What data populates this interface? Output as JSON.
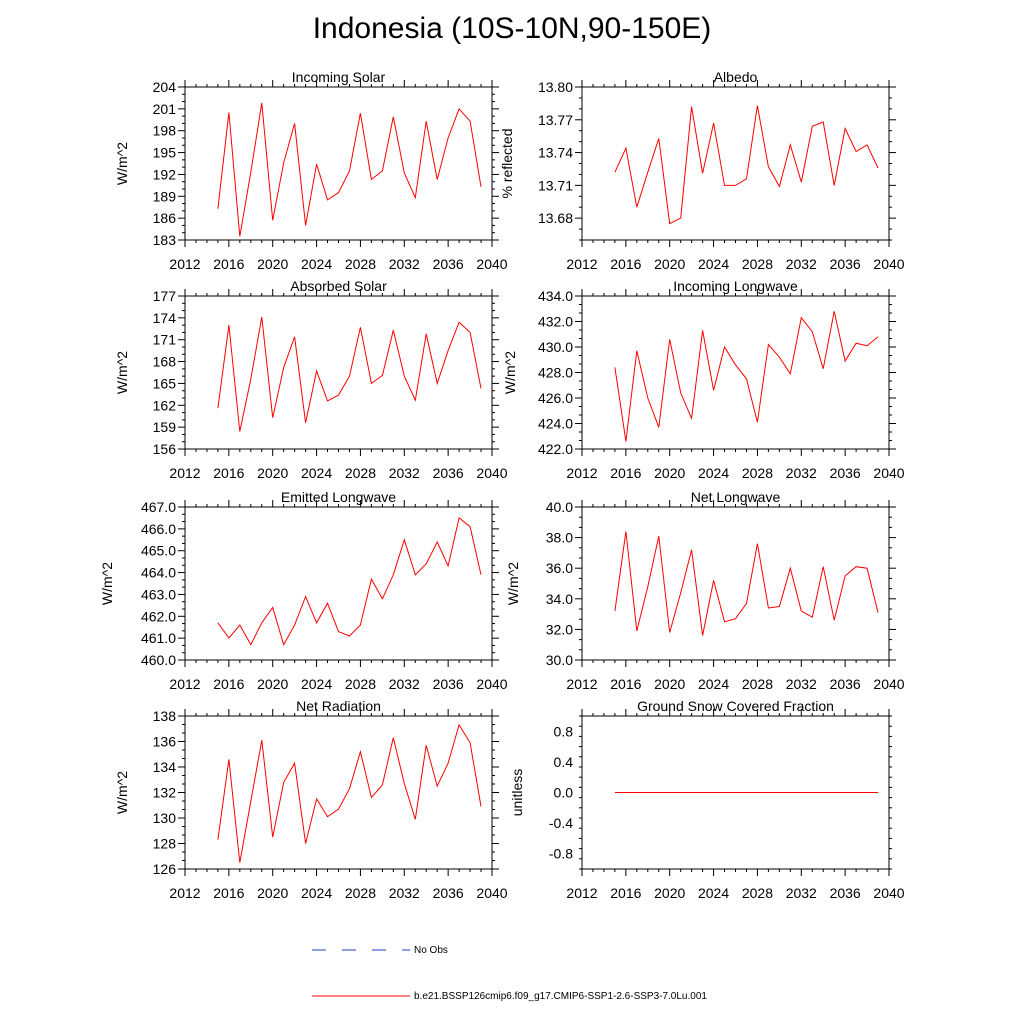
{
  "title": "Indonesia (10S-10N,90-150E)",
  "colors": {
    "model": "#ff0000",
    "obs": "#1f3fbf",
    "axis": "#000000"
  },
  "legend": [
    {
      "label": "No Obs",
      "style": "dashed",
      "color": "#1f3fbf"
    },
    {
      "label": "b.e21.BSSP126cmip6.f09_g17.CMIP6-SSP1-2.6-SSP3-7.0Lu.001",
      "style": "solid",
      "color": "#ff0000"
    }
  ],
  "chart_data": [
    {
      "type": "line",
      "title": "Incoming Solar",
      "ylabel": "W/m^2",
      "xlim": [
        2012,
        2040
      ],
      "xticks": [
        2012,
        2016,
        2020,
        2024,
        2028,
        2032,
        2036,
        2040
      ],
      "ylim": [
        183,
        204
      ],
      "yticks": [
        183,
        186,
        189,
        192,
        195,
        198,
        201,
        204
      ],
      "yticklabels": [
        "183",
        "186",
        "189",
        "192",
        "195",
        "198",
        "201",
        "204"
      ],
      "x": [
        2015,
        2016,
        2017,
        2018,
        2019,
        2020,
        2021,
        2022,
        2023,
        2024,
        2025,
        2026,
        2027,
        2028,
        2029,
        2030,
        2031,
        2032,
        2033,
        2034,
        2035,
        2036,
        2037,
        2038,
        2039
      ],
      "series": [
        {
          "values": [
            187.3,
            200.5,
            183.5,
            192.3,
            201.8,
            185.7,
            193.6,
            199.0,
            185.0,
            193.4,
            188.5,
            189.5,
            192.5,
            200.4,
            191.3,
            192.5,
            199.9,
            192.2,
            188.8,
            199.3,
            191.3,
            197.0,
            201.0,
            199.3,
            190.3
          ]
        }
      ]
    },
    {
      "type": "line",
      "title": "Albedo",
      "ylabel": "% reflected",
      "xlim": [
        2012,
        2040
      ],
      "xticks": [
        2012,
        2016,
        2020,
        2024,
        2028,
        2032,
        2036,
        2040
      ],
      "ylim": [
        13.66,
        13.8
      ],
      "yticks": [
        13.68,
        13.71,
        13.74,
        13.77,
        13.8
      ],
      "yticklabels": [
        "13.68",
        "13.71",
        "13.74",
        "13.77",
        "13.80"
      ],
      "x": [
        2015,
        2016,
        2017,
        2018,
        2019,
        2020,
        2021,
        2022,
        2023,
        2024,
        2025,
        2026,
        2027,
        2028,
        2029,
        2030,
        2031,
        2032,
        2033,
        2034,
        2035,
        2036,
        2037,
        2038,
        2039
      ],
      "series": [
        {
          "values": [
            13.722,
            13.744,
            13.69,
            13.722,
            13.753,
            13.675,
            13.68,
            13.782,
            13.721,
            13.767,
            13.71,
            13.71,
            13.716,
            13.783,
            13.727,
            13.709,
            13.747,
            13.713,
            13.764,
            13.768,
            13.71,
            13.762,
            13.741,
            13.747,
            13.726
          ]
        }
      ]
    },
    {
      "type": "line",
      "title": "Absorbed Solar",
      "ylabel": "W/m^2",
      "xlim": [
        2012,
        2040
      ],
      "xticks": [
        2012,
        2016,
        2020,
        2024,
        2028,
        2032,
        2036,
        2040
      ],
      "ylim": [
        156,
        177
      ],
      "yticks": [
        156,
        159,
        162,
        165,
        168,
        171,
        174,
        177
      ],
      "yticklabels": [
        "156",
        "159",
        "162",
        "165",
        "168",
        "171",
        "174",
        "177"
      ],
      "x": [
        2015,
        2016,
        2017,
        2018,
        2019,
        2020,
        2021,
        2022,
        2023,
        2024,
        2025,
        2026,
        2027,
        2028,
        2029,
        2030,
        2031,
        2032,
        2033,
        2034,
        2035,
        2036,
        2037,
        2038,
        2039
      ],
      "series": [
        {
          "values": [
            161.6,
            173.0,
            158.4,
            165.6,
            174.1,
            160.3,
            167.2,
            171.4,
            159.6,
            166.7,
            162.6,
            163.4,
            166.0,
            172.7,
            165.0,
            166.1,
            172.3,
            166.0,
            162.7,
            171.8,
            165.0,
            169.5,
            173.4,
            172.0,
            164.3
          ]
        }
      ]
    },
    {
      "type": "line",
      "title": "Incoming Longwave",
      "ylabel": "W/m^2",
      "xlim": [
        2012,
        2040
      ],
      "xticks": [
        2012,
        2016,
        2020,
        2024,
        2028,
        2032,
        2036,
        2040
      ],
      "ylim": [
        422,
        434
      ],
      "yticks": [
        422,
        424,
        426,
        428,
        430,
        432,
        434
      ],
      "yticklabels": [
        "422.0",
        "424.0",
        "426.0",
        "428.0",
        "430.0",
        "432.0",
        "434.0"
      ],
      "x": [
        2015,
        2016,
        2017,
        2018,
        2019,
        2020,
        2021,
        2022,
        2023,
        2024,
        2025,
        2026,
        2027,
        2028,
        2029,
        2030,
        2031,
        2032,
        2033,
        2034,
        2035,
        2036,
        2037,
        2038,
        2039
      ],
      "series": [
        {
          "values": [
            428.4,
            422.6,
            429.7,
            426.0,
            423.7,
            430.6,
            426.4,
            424.4,
            431.3,
            426.6,
            430.0,
            428.6,
            427.5,
            424.1,
            430.2,
            429.2,
            427.9,
            432.3,
            431.2,
            428.3,
            432.8,
            428.9,
            430.3,
            430.1,
            430.8
          ]
        }
      ]
    },
    {
      "type": "line",
      "title": "Emitted Longwave",
      "ylabel": "W/m^2",
      "xlim": [
        2012,
        2040
      ],
      "xticks": [
        2012,
        2016,
        2020,
        2024,
        2028,
        2032,
        2036,
        2040
      ],
      "ylim": [
        460,
        467
      ],
      "yticks": [
        460,
        461,
        462,
        463,
        464,
        465,
        466,
        467
      ],
      "yticklabels": [
        "460.0",
        "461.0",
        "462.0",
        "463.0",
        "464.0",
        "465.0",
        "466.0",
        "467.0"
      ],
      "x": [
        2015,
        2016,
        2017,
        2018,
        2019,
        2020,
        2021,
        2022,
        2023,
        2024,
        2025,
        2026,
        2027,
        2028,
        2029,
        2030,
        2031,
        2032,
        2033,
        2034,
        2035,
        2036,
        2037,
        2038,
        2039
      ],
      "series": [
        {
          "values": [
            461.7,
            461.0,
            461.6,
            460.7,
            461.7,
            462.4,
            460.7,
            461.6,
            462.9,
            461.7,
            462.6,
            461.3,
            461.1,
            461.6,
            463.7,
            462.8,
            463.9,
            465.5,
            463.9,
            464.4,
            465.4,
            464.3,
            466.5,
            466.1,
            463.9
          ]
        }
      ]
    },
    {
      "type": "line",
      "title": "Net Longwave",
      "ylabel": "W/m^2",
      "xlim": [
        2012,
        2040
      ],
      "xticks": [
        2012,
        2016,
        2020,
        2024,
        2028,
        2032,
        2036,
        2040
      ],
      "ylim": [
        30,
        40
      ],
      "yticks": [
        30,
        32,
        34,
        36,
        38,
        40
      ],
      "yticklabels": [
        "30.0",
        "32.0",
        "34.0",
        "36.0",
        "38.0",
        "40.0"
      ],
      "x": [
        2015,
        2016,
        2017,
        2018,
        2019,
        2020,
        2021,
        2022,
        2023,
        2024,
        2025,
        2026,
        2027,
        2028,
        2029,
        2030,
        2031,
        2032,
        2033,
        2034,
        2035,
        2036,
        2037,
        2038,
        2039
      ],
      "series": [
        {
          "values": [
            33.2,
            38.4,
            31.9,
            34.8,
            38.1,
            31.8,
            34.4,
            37.2,
            31.6,
            35.2,
            32.5,
            32.7,
            33.7,
            37.6,
            33.4,
            33.5,
            36.0,
            33.2,
            32.8,
            36.1,
            32.6,
            35.5,
            36.1,
            36.0,
            33.1
          ]
        }
      ]
    },
    {
      "type": "line",
      "title": "Net Radiation",
      "ylabel": "W/m^2",
      "xlim": [
        2012,
        2040
      ],
      "xticks": [
        2012,
        2016,
        2020,
        2024,
        2028,
        2032,
        2036,
        2040
      ],
      "ylim": [
        126,
        138
      ],
      "yticks": [
        126,
        128,
        130,
        132,
        134,
        136,
        138
      ],
      "yticklabels": [
        "126",
        "128",
        "130",
        "132",
        "134",
        "136",
        "138"
      ],
      "x": [
        2015,
        2016,
        2017,
        2018,
        2019,
        2020,
        2021,
        2022,
        2023,
        2024,
        2025,
        2026,
        2027,
        2028,
        2029,
        2030,
        2031,
        2032,
        2033,
        2034,
        2035,
        2036,
        2037,
        2038,
        2039
      ],
      "series": [
        {
          "values": [
            128.3,
            134.6,
            126.5,
            131.3,
            136.1,
            128.5,
            132.8,
            134.3,
            128.0,
            131.5,
            130.1,
            130.7,
            132.3,
            135.2,
            131.6,
            132.6,
            136.3,
            132.7,
            129.9,
            135.7,
            132.5,
            134.3,
            137.3,
            135.9,
            130.9
          ]
        }
      ]
    },
    {
      "type": "line",
      "title": "Ground Snow Covered Fraction",
      "ylabel": "unitless",
      "xlim": [
        2012,
        2040
      ],
      "xticks": [
        2012,
        2016,
        2020,
        2024,
        2028,
        2032,
        2036,
        2040
      ],
      "ylim": [
        -1,
        1
      ],
      "yticks": [
        -0.8,
        -0.4,
        0,
        0.4,
        0.8
      ],
      "yticklabels": [
        "-0.8",
        "-0.4",
        "0.0",
        "0.4",
        "0.8"
      ],
      "x": [
        2015,
        2016,
        2017,
        2018,
        2019,
        2020,
        2021,
        2022,
        2023,
        2024,
        2025,
        2026,
        2027,
        2028,
        2029,
        2030,
        2031,
        2032,
        2033,
        2034,
        2035,
        2036,
        2037,
        2038,
        2039
      ],
      "series": [
        {
          "values": [
            0,
            0,
            0,
            0,
            0,
            0,
            0,
            0,
            0,
            0,
            0,
            0,
            0,
            0,
            0,
            0,
            0,
            0,
            0,
            0,
            0,
            0,
            0,
            0,
            0
          ]
        }
      ]
    }
  ]
}
